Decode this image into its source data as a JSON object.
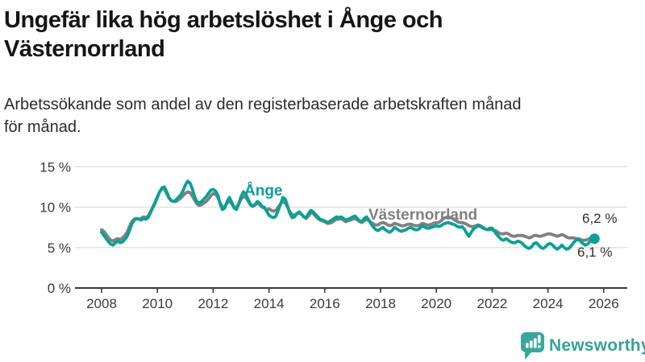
{
  "header": {
    "title_line1": "Ungefär lika hög arbetslöshet i Ånge och",
    "title_line2": "Västernorrland",
    "subtitle_line1": "Arbetssökande som andel av den registerbaserade arbetskraften månad",
    "subtitle_line2": "för månad."
  },
  "chart_data": {
    "type": "line",
    "title": "Ungefär lika hög arbetslöshet i Ånge och Västernorrland",
    "subtitle": "Arbetssökande som andel av den registerbaserade arbetskraften månad för månad.",
    "unit": "%",
    "x_start_year": 2008,
    "x_interval_months": 1,
    "xlim": [
      2007.05,
      2026.85
    ],
    "ylim": [
      0,
      16.5
    ],
    "yticks": [
      0,
      5,
      10,
      15
    ],
    "ytick_labels": [
      "0 %",
      "5 %",
      "10 %",
      "15 %"
    ],
    "xticks": [
      2008,
      2010,
      2012,
      2014,
      2016,
      2018,
      2020,
      2022,
      2024,
      2026
    ],
    "xtick_labels": [
      "2008",
      "2010",
      "2012",
      "2014",
      "2016",
      "2018",
      "2020",
      "2022",
      "2024",
      "2026"
    ],
    "grid": "horizontal",
    "colors": {
      "grid": "#dedede",
      "axis": "#3a3a3a",
      "tick_text": "#3a3a3a",
      "annotation_text": "#2f2f2f"
    },
    "series": [
      {
        "name": "Västernorrland",
        "color": "#808080",
        "end_value": 6.2,
        "end_label": "6,2 %",
        "end_dot": false,
        "values": [
          7.2,
          7.0,
          6.6,
          6.2,
          5.9,
          5.8,
          6.0,
          6.1,
          6.0,
          6.2,
          6.5,
          6.9,
          7.6,
          8.2,
          8.5,
          8.6,
          8.5,
          8.6,
          8.8,
          8.7,
          8.9,
          9.4,
          10.0,
          10.6,
          11.3,
          11.9,
          12.3,
          12.2,
          11.7,
          11.1,
          10.8,
          10.7,
          10.7,
          10.9,
          11.1,
          11.4,
          11.7,
          11.9,
          11.8,
          11.4,
          10.9,
          10.4,
          10.2,
          10.3,
          10.5,
          10.7,
          11.0,
          11.4,
          11.7,
          11.6,
          11.2,
          10.5,
          10.0,
          10.1,
          10.5,
          10.8,
          10.4,
          10.0,
          10.0,
          10.4,
          11.0,
          11.3,
          11.2,
          10.8,
          10.3,
          10.1,
          10.3,
          10.5,
          10.3,
          10.0,
          9.9,
          9.6,
          9.8,
          9.6,
          9.5,
          9.6,
          10.0,
          10.4,
          10.7,
          10.5,
          10.0,
          9.4,
          9.1,
          9.0,
          9.2,
          9.3,
          9.1,
          8.8,
          8.6,
          8.9,
          9.3,
          9.2,
          8.9,
          8.6,
          8.4,
          8.3,
          8.2,
          8.0,
          8.0,
          8.1,
          8.3,
          8.5,
          8.5,
          8.6,
          8.4,
          8.2,
          8.3,
          8.4,
          8.5,
          8.6,
          8.4,
          8.2,
          8.1,
          8.3,
          8.5,
          8.3,
          8.1,
          7.9,
          7.8,
          7.8,
          8.0,
          8.1,
          8.0,
          7.8,
          7.7,
          7.8,
          8.0,
          7.9,
          7.8,
          7.7,
          7.7,
          7.8,
          7.9,
          7.9,
          7.8,
          7.7,
          7.7,
          7.8,
          8.0,
          7.9,
          7.8,
          7.8,
          7.9,
          8.0,
          8.1,
          8.1,
          8.3,
          8.6,
          8.7,
          8.8,
          8.7,
          8.6,
          8.4,
          8.2,
          8.1,
          8.1,
          8.0,
          7.9,
          7.7,
          7.6,
          7.6,
          7.7,
          7.8,
          7.7,
          7.5,
          7.3,
          7.2,
          7.2,
          7.2,
          7.1,
          7.0,
          6.8,
          6.7,
          6.7,
          6.8,
          6.7,
          6.5,
          6.4,
          6.4,
          6.5,
          6.5,
          6.5,
          6.4,
          6.3,
          6.2,
          6.3,
          6.5,
          6.5,
          6.4,
          6.4,
          6.5,
          6.6,
          6.7,
          6.7,
          6.6,
          6.5,
          6.4,
          6.5,
          6.6,
          6.5,
          6.3,
          6.2,
          6.2,
          6.2,
          6.1,
          6.1,
          6.0,
          5.9,
          5.9,
          6.0,
          6.1,
          6.2,
          6.2
        ]
      },
      {
        "name": "Ånge",
        "color": "#0aa096",
        "end_value": 6.1,
        "end_label": "6,1 %",
        "end_dot": true,
        "values": [
          6.9,
          6.5,
          6.1,
          5.7,
          5.4,
          5.3,
          5.6,
          5.8,
          5.6,
          5.7,
          6.0,
          6.4,
          7.1,
          7.9,
          8.4,
          8.6,
          8.5,
          8.4,
          8.6,
          8.5,
          8.7,
          9.3,
          9.9,
          10.5,
          11.2,
          11.9,
          12.4,
          12.5,
          11.9,
          11.2,
          10.8,
          10.7,
          10.9,
          11.2,
          11.5,
          12.0,
          12.7,
          13.2,
          13.0,
          12.3,
          11.3,
          10.7,
          10.5,
          10.7,
          11.0,
          11.3,
          11.7,
          12.1,
          12.2,
          12.0,
          11.5,
          10.4,
          9.7,
          9.9,
          10.7,
          11.2,
          10.6,
          9.9,
          9.7,
          10.4,
          11.3,
          11.9,
          11.6,
          11.0,
          10.4,
          10.1,
          10.3,
          10.7,
          10.5,
          10.1,
          10.0,
          9.5,
          9.0,
          8.8,
          8.7,
          8.9,
          9.6,
          10.4,
          11.2,
          11.0,
          10.1,
          9.2,
          8.7,
          8.8,
          9.2,
          9.4,
          9.1,
          8.8,
          8.7,
          9.2,
          9.6,
          9.4,
          9.1,
          8.8,
          8.5,
          8.4,
          8.3,
          8.1,
          8.2,
          8.4,
          8.6,
          8.8,
          8.7,
          8.8,
          8.6,
          8.4,
          8.5,
          8.6,
          8.8,
          8.9,
          8.6,
          8.3,
          8.2,
          8.6,
          8.8,
          8.4,
          7.9,
          7.5,
          7.2,
          7.1,
          7.3,
          7.5,
          7.2,
          7.0,
          6.9,
          7.1,
          7.5,
          7.3,
          7.1,
          7.0,
          7.1,
          7.2,
          7.4,
          7.5,
          7.3,
          7.2,
          7.2,
          7.4,
          7.7,
          7.5,
          7.4,
          7.4,
          7.5,
          7.6,
          7.7,
          7.6,
          7.7,
          7.9,
          8.0,
          8.1,
          8.0,
          7.9,
          7.8,
          7.6,
          7.5,
          7.6,
          7.3,
          6.8,
          6.4,
          6.9,
          7.3,
          7.5,
          7.7,
          7.6,
          7.4,
          7.3,
          7.2,
          7.4,
          7.4,
          7.0,
          6.6,
          6.3,
          6.0,
          5.9,
          6.1,
          5.9,
          5.7,
          5.6,
          5.6,
          5.8,
          5.7,
          5.5,
          5.2,
          5.0,
          4.9,
          5.1,
          5.5,
          5.6,
          5.3,
          5.0,
          4.9,
          5.1,
          5.4,
          5.5,
          5.3,
          5.0,
          4.8,
          5.0,
          5.3,
          5.0,
          4.8,
          4.9,
          5.2,
          5.6,
          5.9,
          6.0,
          5.8,
          5.5,
          5.3,
          5.4,
          5.7,
          6.0,
          6.1
        ]
      }
    ],
    "legend_position": "inline-labels"
  },
  "footer": {
    "brand": "Newsworthy",
    "brand_color": "#35a29a",
    "logo_icon": "bar-chart-speech-bubble-icon",
    "logo_fill": "#3aa79d"
  }
}
